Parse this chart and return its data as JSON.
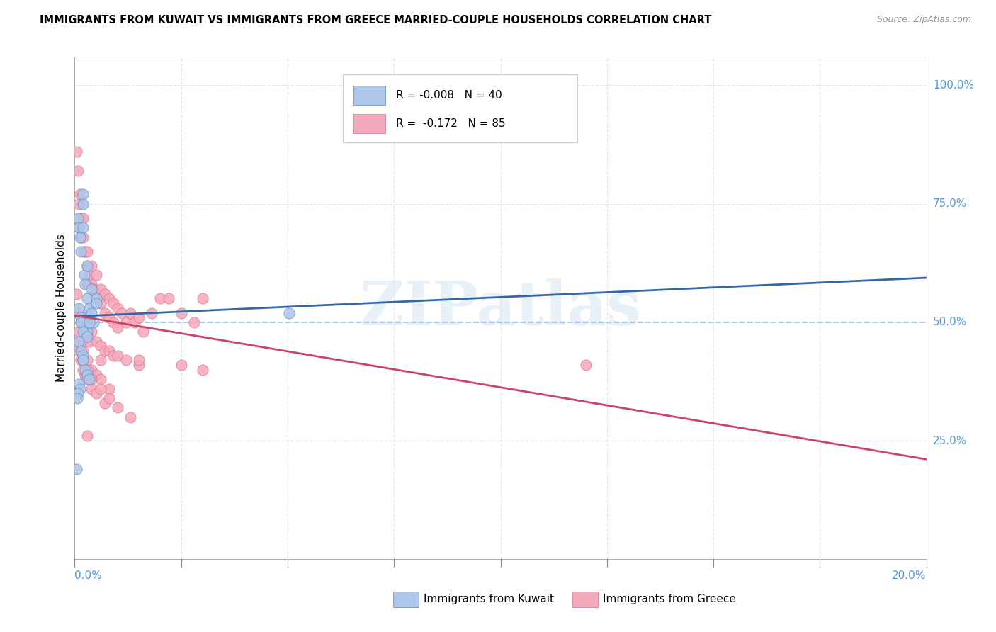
{
  "title": "IMMIGRANTS FROM KUWAIT VS IMMIGRANTS FROM GREECE MARRIED-COUPLE HOUSEHOLDS CORRELATION CHART",
  "source": "Source: ZipAtlas.com",
  "ylabel": "Married-couple Households",
  "kuwait_fill": "#aec6e8",
  "kuwait_edge": "#5588cc",
  "kuwait_line": "#3366aa",
  "greece_fill": "#f5aabb",
  "greece_edge": "#e06688",
  "greece_line": "#cc4466",
  "dashed_line_color": "#aac8e8",
  "grid_color": "#dde8f0",
  "right_label_color": "#5599dd",
  "watermark_color": "#e8f0f8",
  "legend_edge": "#cccccc",
  "bottom_label_color": "#5599dd",
  "kuwait_x": [
    0.0008,
    0.001,
    0.0012,
    0.0015,
    0.002,
    0.002,
    0.002,
    0.0022,
    0.0025,
    0.003,
    0.003,
    0.003,
    0.0035,
    0.004,
    0.004,
    0.0045,
    0.005,
    0.005,
    0.001,
    0.0015,
    0.002,
    0.0025,
    0.003,
    0.0015,
    0.002,
    0.003,
    0.0035,
    0.001,
    0.0015,
    0.002,
    0.002,
    0.0025,
    0.003,
    0.0035,
    0.001,
    0.0012,
    0.0008,
    0.0006,
    0.0005,
    0.0504
  ],
  "kuwait_y": [
    0.72,
    0.7,
    0.68,
    0.65,
    0.77,
    0.75,
    0.7,
    0.6,
    0.58,
    0.62,
    0.55,
    0.51,
    0.53,
    0.57,
    0.52,
    0.5,
    0.55,
    0.54,
    0.53,
    0.51,
    0.5,
    0.49,
    0.48,
    0.5,
    0.48,
    0.47,
    0.5,
    0.46,
    0.44,
    0.43,
    0.42,
    0.4,
    0.39,
    0.38,
    0.37,
    0.36,
    0.35,
    0.34,
    0.19,
    0.52
  ],
  "greece_x": [
    0.0005,
    0.0008,
    0.001,
    0.001,
    0.0012,
    0.0015,
    0.0015,
    0.002,
    0.002,
    0.0022,
    0.0025,
    0.003,
    0.003,
    0.003,
    0.0035,
    0.004,
    0.004,
    0.0045,
    0.005,
    0.005,
    0.0055,
    0.006,
    0.006,
    0.007,
    0.007,
    0.008,
    0.008,
    0.009,
    0.009,
    0.01,
    0.01,
    0.011,
    0.012,
    0.013,
    0.014,
    0.015,
    0.016,
    0.018,
    0.02,
    0.022,
    0.025,
    0.028,
    0.03,
    0.0005,
    0.001,
    0.0015,
    0.002,
    0.0025,
    0.003,
    0.0035,
    0.004,
    0.005,
    0.006,
    0.007,
    0.008,
    0.009,
    0.01,
    0.012,
    0.015,
    0.001,
    0.0015,
    0.002,
    0.003,
    0.004,
    0.005,
    0.006,
    0.008,
    0.001,
    0.0015,
    0.002,
    0.0025,
    0.003,
    0.004,
    0.005,
    0.007,
    0.002,
    0.003,
    0.004,
    0.006,
    0.008,
    0.01,
    0.013,
    0.12,
    0.003,
    0.006,
    0.015,
    0.025,
    0.03
  ],
  "greece_y": [
    0.86,
    0.82,
    0.75,
    0.7,
    0.77,
    0.72,
    0.68,
    0.72,
    0.68,
    0.65,
    0.65,
    0.65,
    0.62,
    0.58,
    0.6,
    0.62,
    0.58,
    0.57,
    0.6,
    0.56,
    0.55,
    0.57,
    0.54,
    0.56,
    0.52,
    0.55,
    0.51,
    0.54,
    0.5,
    0.53,
    0.49,
    0.52,
    0.5,
    0.52,
    0.5,
    0.51,
    0.48,
    0.52,
    0.55,
    0.55,
    0.52,
    0.5,
    0.55,
    0.56,
    0.52,
    0.5,
    0.5,
    0.48,
    0.47,
    0.46,
    0.48,
    0.46,
    0.45,
    0.44,
    0.44,
    0.43,
    0.43,
    0.42,
    0.41,
    0.48,
    0.46,
    0.44,
    0.42,
    0.4,
    0.39,
    0.38,
    0.36,
    0.44,
    0.42,
    0.4,
    0.39,
    0.38,
    0.36,
    0.35,
    0.33,
    0.42,
    0.4,
    0.38,
    0.36,
    0.34,
    0.32,
    0.3,
    0.41,
    0.26,
    0.42,
    0.42,
    0.41,
    0.4
  ],
  "xmin": 0.0,
  "xmax": 0.2,
  "ymin": 0.0,
  "ymax": 1.0,
  "kuwait_trend_x": [
    0.0,
    0.2
  ],
  "kuwait_trend_y_intercept": 0.497,
  "kuwait_trend_slope": 0.15,
  "greece_trend_y_intercept": 0.565,
  "greece_trend_slope": -1.15
}
